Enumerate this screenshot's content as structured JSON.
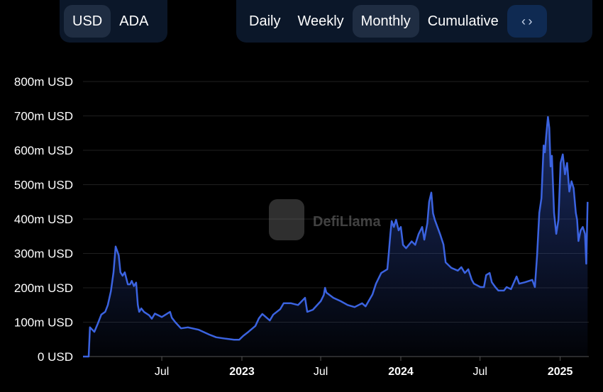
{
  "currency_toggle": {
    "options": [
      "USD",
      "ADA"
    ],
    "selected": "USD"
  },
  "period_toggle": {
    "options": [
      "Daily",
      "Weekly",
      "Monthly",
      "Cumulative"
    ],
    "selected": "Monthly"
  },
  "embed_icon": "code-brackets-icon",
  "watermark": "DefiLlama",
  "chart_data": {
    "type": "area",
    "title": "",
    "xlabel": "",
    "ylabel": "",
    "color": "#3b63e0",
    "grid": true,
    "ylim": [
      0,
      800
    ],
    "yticks": [
      "0 USD",
      "100m USD",
      "200m USD",
      "300m USD",
      "400m USD",
      "500m USD",
      "600m USD",
      "700m USD",
      "800m USD"
    ],
    "xticks": [
      {
        "date": "2022-07-01",
        "label": "Jul"
      },
      {
        "date": "2023-01-01",
        "label": "2023"
      },
      {
        "date": "2023-07-01",
        "label": "Jul"
      },
      {
        "date": "2024-01-01",
        "label": "2024"
      },
      {
        "date": "2024-07-01",
        "label": "Jul"
      },
      {
        "date": "2025-01-01",
        "label": "2025"
      }
    ],
    "unit": "m USD",
    "points": [
      [
        "2022-01-01",
        0
      ],
      [
        "2022-01-14",
        0
      ],
      [
        "2022-01-17",
        85
      ],
      [
        "2022-01-27",
        72
      ],
      [
        "2022-02-03",
        93
      ],
      [
        "2022-02-12",
        122
      ],
      [
        "2022-02-21",
        130
      ],
      [
        "2022-02-27",
        150
      ],
      [
        "2022-03-06",
        190
      ],
      [
        "2022-03-12",
        245
      ],
      [
        "2022-03-17",
        320
      ],
      [
        "2022-03-24",
        295
      ],
      [
        "2022-03-28",
        245
      ],
      [
        "2022-04-02",
        235
      ],
      [
        "2022-04-07",
        245
      ],
      [
        "2022-04-14",
        210
      ],
      [
        "2022-04-19",
        210
      ],
      [
        "2022-04-23",
        220
      ],
      [
        "2022-04-28",
        205
      ],
      [
        "2022-05-03",
        215
      ],
      [
        "2022-05-07",
        150
      ],
      [
        "2022-05-10",
        130
      ],
      [
        "2022-05-15",
        140
      ],
      [
        "2022-05-21",
        130
      ],
      [
        "2022-06-02",
        120
      ],
      [
        "2022-06-08",
        110
      ],
      [
        "2022-06-15",
        125
      ],
      [
        "2022-07-01",
        115
      ],
      [
        "2022-07-20",
        130
      ],
      [
        "2022-07-24",
        113
      ],
      [
        "2022-08-01",
        100
      ],
      [
        "2022-08-14",
        82
      ],
      [
        "2022-08-30",
        85
      ],
      [
        "2022-09-24",
        78
      ],
      [
        "2022-10-18",
        64
      ],
      [
        "2022-11-03",
        56
      ],
      [
        "2022-11-25",
        52
      ],
      [
        "2022-12-14",
        49
      ],
      [
        "2022-12-26",
        49
      ],
      [
        "2023-01-04",
        60
      ],
      [
        "2023-01-16",
        72
      ],
      [
        "2023-02-01",
        89
      ],
      [
        "2023-02-09",
        111
      ],
      [
        "2023-02-17",
        124
      ],
      [
        "2023-03-06",
        105
      ],
      [
        "2023-03-14",
        122
      ],
      [
        "2023-03-30",
        138
      ],
      [
        "2023-04-07",
        155
      ],
      [
        "2023-04-24",
        155
      ],
      [
        "2023-05-10",
        150
      ],
      [
        "2023-05-26",
        171
      ],
      [
        "2023-05-31",
        130
      ],
      [
        "2023-06-13",
        136
      ],
      [
        "2023-07-01",
        161
      ],
      [
        "2023-07-08",
        179
      ],
      [
        "2023-07-11",
        200
      ],
      [
        "2023-07-14",
        186
      ],
      [
        "2023-07-30",
        171
      ],
      [
        "2023-08-16",
        161
      ],
      [
        "2023-09-01",
        150
      ],
      [
        "2023-09-17",
        144
      ],
      [
        "2023-10-04",
        155
      ],
      [
        "2023-10-12",
        146
      ],
      [
        "2023-10-28",
        181
      ],
      [
        "2023-11-05",
        212
      ],
      [
        "2023-11-17",
        243
      ],
      [
        "2023-12-01",
        254
      ],
      [
        "2023-12-04",
        295
      ],
      [
        "2023-12-08",
        357
      ],
      [
        "2023-12-11",
        394
      ],
      [
        "2023-12-16",
        377
      ],
      [
        "2023-12-21",
        398
      ],
      [
        "2023-12-27",
        367
      ],
      [
        "2024-01-01",
        377
      ],
      [
        "2024-01-06",
        325
      ],
      [
        "2024-01-13",
        315
      ],
      [
        "2024-01-26",
        335
      ],
      [
        "2024-02-03",
        325
      ],
      [
        "2024-02-11",
        357
      ],
      [
        "2024-02-19",
        377
      ],
      [
        "2024-02-24",
        340
      ],
      [
        "2024-03-02",
        388
      ],
      [
        "2024-03-06",
        450
      ],
      [
        "2024-03-11",
        477
      ],
      [
        "2024-03-15",
        417
      ],
      [
        "2024-03-19",
        398
      ],
      [
        "2024-03-31",
        357
      ],
      [
        "2024-04-08",
        326
      ],
      [
        "2024-04-13",
        274
      ],
      [
        "2024-04-26",
        258
      ],
      [
        "2024-05-11",
        250
      ],
      [
        "2024-05-19",
        260
      ],
      [
        "2024-05-27",
        243
      ],
      [
        "2024-06-04",
        254
      ],
      [
        "2024-06-12",
        223
      ],
      [
        "2024-06-17",
        212
      ],
      [
        "2024-07-02",
        202
      ],
      [
        "2024-07-10",
        202
      ],
      [
        "2024-07-15",
        237
      ],
      [
        "2024-07-23",
        243
      ],
      [
        "2024-07-28",
        216
      ],
      [
        "2024-08-05",
        202
      ],
      [
        "2024-08-12",
        192
      ],
      [
        "2024-08-25",
        192
      ],
      [
        "2024-08-31",
        202
      ],
      [
        "2024-09-10",
        196
      ],
      [
        "2024-09-23",
        233
      ],
      [
        "2024-09-29",
        212
      ],
      [
        "2024-10-12",
        216
      ],
      [
        "2024-10-29",
        223
      ],
      [
        "2024-11-04",
        202
      ],
      [
        "2024-11-09",
        295
      ],
      [
        "2024-11-14",
        418
      ],
      [
        "2024-11-19",
        460
      ],
      [
        "2024-11-24",
        614
      ],
      [
        "2024-11-27",
        594
      ],
      [
        "2024-11-30",
        644
      ],
      [
        "2024-12-04",
        697
      ],
      [
        "2024-12-07",
        665
      ],
      [
        "2024-12-10",
        553
      ],
      [
        "2024-12-13",
        584
      ],
      [
        "2024-12-18",
        418
      ],
      [
        "2024-12-23",
        357
      ],
      [
        "2024-12-28",
        398
      ],
      [
        "2025-01-02",
        563
      ],
      [
        "2025-01-07",
        588
      ],
      [
        "2025-01-12",
        530
      ],
      [
        "2025-01-17",
        563
      ],
      [
        "2025-01-22",
        480
      ],
      [
        "2025-01-27",
        510
      ],
      [
        "2025-02-01",
        490
      ],
      [
        "2025-02-06",
        418
      ],
      [
        "2025-02-09",
        398
      ],
      [
        "2025-02-12",
        336
      ],
      [
        "2025-02-17",
        367
      ],
      [
        "2025-02-22",
        377
      ],
      [
        "2025-02-27",
        357
      ],
      [
        "2025-03-02",
        270
      ],
      [
        "2025-03-05",
        450
      ]
    ]
  }
}
